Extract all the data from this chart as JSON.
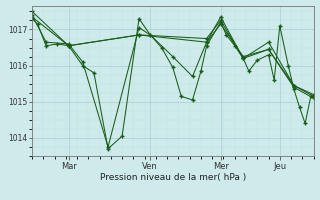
{
  "bg_color": "#ceeaea",
  "grid_color_major": "#aacece",
  "grid_color_minor": "#c4e4e4",
  "line_color": "#1a5c1a",
  "marker_color": "#1a5c1a",
  "ylabel_ticks": [
    1014,
    1015,
    1016,
    1017
  ],
  "xlabel": "Pression niveau de la mer( hPa )",
  "xtick_labels": [
    "Mar",
    "Ven",
    "Mer",
    "Jeu"
  ],
  "figsize": [
    3.2,
    2.0
  ],
  "dpi": 100,
  "series": [
    {
      "x": [
        0,
        2,
        5,
        9,
        13,
        18,
        22,
        27,
        32,
        38,
        42,
        46,
        50,
        53,
        57,
        60,
        62,
        67,
        69,
        72,
        75,
        77,
        80,
        84,
        86,
        88,
        91,
        93,
        95,
        97,
        99,
        100
      ],
      "y": [
        1017.3,
        1017.15,
        1016.55,
        1016.6,
        1016.55,
        1016.0,
        1015.8,
        1013.7,
        1014.05,
        1017.3,
        1016.85,
        1016.5,
        1015.95,
        1015.15,
        1015.05,
        1015.85,
        1016.55,
        1017.2,
        1016.85,
        1016.55,
        1016.2,
        1015.85,
        1016.15,
        1016.3,
        1015.6,
        1017.1,
        1016.0,
        1015.35,
        1014.85,
        1014.4,
        1015.15,
        1015.15
      ]
    },
    {
      "x": [
        0,
        5,
        13,
        18,
        27,
        38,
        42,
        50,
        57,
        62,
        67,
        75,
        84,
        93,
        100
      ],
      "y": [
        1017.4,
        1016.65,
        1016.6,
        1016.1,
        1013.75,
        1017.05,
        1016.85,
        1016.25,
        1015.7,
        1016.65,
        1017.15,
        1016.25,
        1016.45,
        1015.4,
        1015.1
      ]
    },
    {
      "x": [
        0,
        13,
        38,
        62,
        67,
        75,
        84,
        93,
        100
      ],
      "y": [
        1017.5,
        1016.55,
        1016.85,
        1016.65,
        1017.35,
        1016.2,
        1016.65,
        1015.45,
        1015.2
      ]
    },
    {
      "x": [
        0,
        13,
        38,
        62,
        67,
        75,
        84,
        93,
        100
      ],
      "y": [
        1017.35,
        1016.55,
        1016.85,
        1016.75,
        1017.25,
        1016.2,
        1016.45,
        1015.45,
        1015.15
      ]
    }
  ],
  "xtick_positions_data": [
    13,
    42,
    67,
    88
  ],
  "xlim": [
    0,
    100
  ],
  "ylim": [
    1013.5,
    1017.65
  ]
}
